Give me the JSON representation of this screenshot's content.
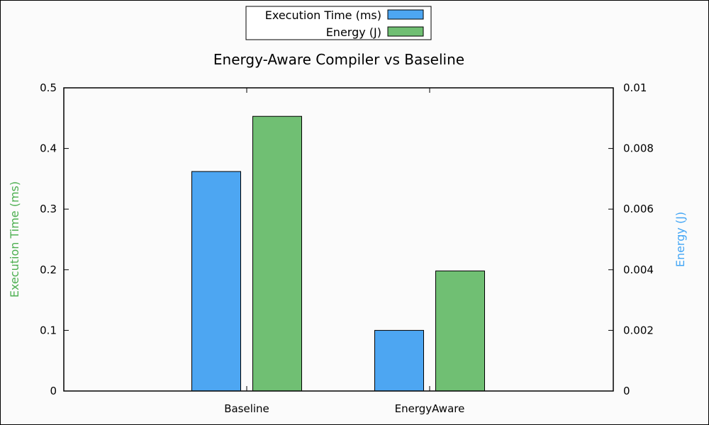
{
  "chart_data": {
    "type": "bar",
    "title": "Energy-Aware Compiler vs Baseline",
    "categories": [
      "Baseline",
      "EnergyAware"
    ],
    "series": [
      {
        "name": "Execution Time (ms)",
        "axis": "left",
        "color": "#4da6f2",
        "values": [
          0.362,
          0.1
        ]
      },
      {
        "name": "Energy (J)",
        "axis": "right",
        "color": "#70bf73",
        "values": [
          0.00906,
          0.00396
        ]
      }
    ],
    "ylabel_left": "Execution Time (ms)",
    "ylabel_left_color": "#4caf50",
    "ylabel_right": "Energy (J)",
    "ylabel_right_color": "#42a5f5",
    "ylim_left": [
      0,
      0.5
    ],
    "ylim_right": [
      0,
      0.01
    ],
    "yticks_left": [
      "0",
      "0.1",
      "0.2",
      "0.3",
      "0.4",
      "0.5"
    ],
    "yticks_right": [
      "0",
      "0.002",
      "0.004",
      "0.006",
      "0.008",
      "0.01"
    ],
    "grid": false,
    "legend_position": "top-center"
  }
}
